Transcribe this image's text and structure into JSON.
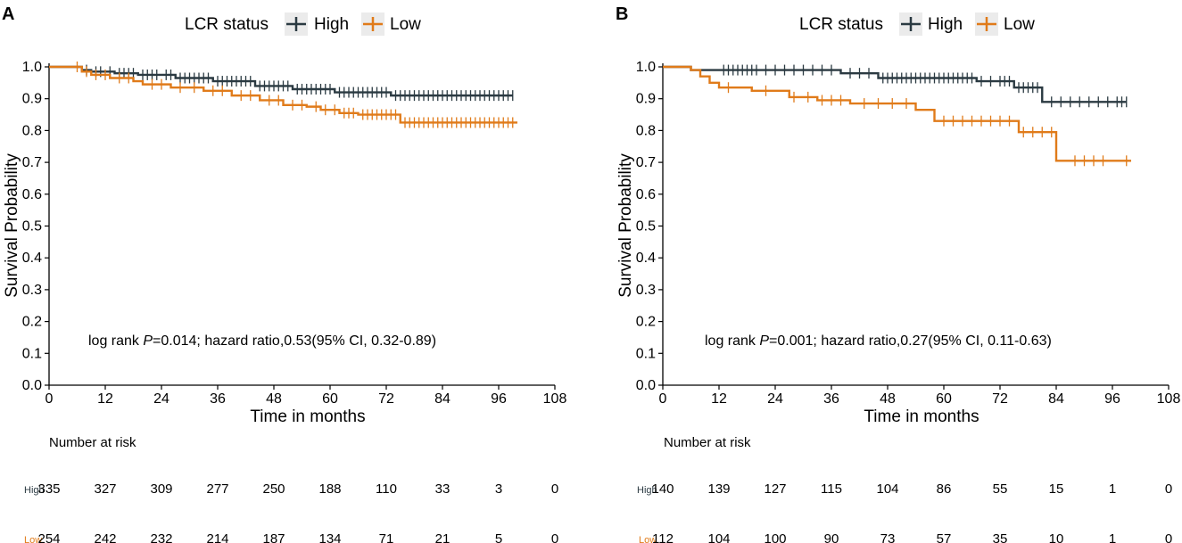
{
  "colors": {
    "high": "#2b3a42",
    "low": "#e07b1a",
    "axis": "#000000"
  },
  "chart_data": [
    {
      "type": "line",
      "panel_label": "A",
      "title": "",
      "legend_title": "LCR status",
      "legend_position": "top",
      "xlabel": "Time in months",
      "ylabel": "Survival Probability",
      "xlim": [
        0,
        108
      ],
      "ylim": [
        0,
        1
      ],
      "x_ticks": [
        "0",
        "12",
        "24",
        "36",
        "48",
        "60",
        "72",
        "84",
        "96",
        "108"
      ],
      "y_ticks": [
        "0.0",
        "0.1",
        "0.2",
        "0.3",
        "0.4",
        "0.5",
        "0.6",
        "0.7",
        "0.8",
        "0.9",
        "1.0"
      ],
      "annotation": {
        "prefix": "log rank ",
        "p_symbol": "P",
        "rest": "=0.014; hazard ratio,0.53(95% CI, 0.32-0.89)"
      },
      "series": [
        {
          "name": "High",
          "x": [
            0,
            5,
            7,
            9,
            14,
            19,
            27,
            35,
            44,
            52,
            61,
            73,
            99
          ],
          "y": [
            1.0,
            1.0,
            0.99,
            0.985,
            0.98,
            0.975,
            0.965,
            0.955,
            0.94,
            0.93,
            0.92,
            0.91,
            0.91
          ],
          "censor_x": [
            8,
            10,
            11,
            13,
            15,
            16,
            17,
            18,
            20,
            21,
            22,
            23,
            25,
            26,
            28,
            29,
            30,
            31,
            32,
            33,
            34,
            36,
            37,
            38,
            39,
            40,
            41,
            42,
            43,
            45,
            46,
            47,
            48,
            49,
            50,
            51,
            53,
            54,
            55,
            56,
            57,
            58,
            59,
            60,
            62,
            63,
            64,
            65,
            66,
            67,
            68,
            69,
            70,
            71,
            72,
            74,
            75,
            76,
            77,
            78,
            79,
            80,
            81,
            82,
            83,
            84,
            85,
            86,
            87,
            88,
            89,
            90,
            91,
            92,
            93,
            94,
            95,
            96,
            97,
            98,
            99
          ]
        },
        {
          "name": "Low",
          "x": [
            0,
            5,
            7,
            9,
            13,
            18,
            20,
            26,
            33,
            39,
            45,
            50,
            55,
            58,
            62,
            66,
            75,
            100
          ],
          "y": [
            1.0,
            1.0,
            0.985,
            0.975,
            0.965,
            0.955,
            0.945,
            0.935,
            0.925,
            0.91,
            0.895,
            0.88,
            0.875,
            0.865,
            0.855,
            0.85,
            0.825,
            0.825
          ],
          "censor_x": [
            6,
            8,
            10,
            12,
            15,
            17,
            22,
            24,
            28,
            31,
            35,
            37,
            41,
            43,
            47,
            49,
            52,
            54,
            57,
            59,
            61,
            63,
            64,
            65,
            67,
            68,
            69,
            70,
            71,
            72,
            73,
            74,
            76,
            77,
            78,
            79,
            80,
            81,
            82,
            83,
            84,
            85,
            86,
            87,
            88,
            89,
            90,
            91,
            92,
            93,
            94,
            95,
            96,
            97,
            98,
            99
          ]
        }
      ],
      "risk_table": {
        "title": "Number at risk",
        "times": [
          0,
          12,
          24,
          36,
          48,
          60,
          72,
          84,
          96,
          108
        ],
        "rows": [
          {
            "name": "High",
            "values": [
              "335",
              "327",
              "309",
              "277",
              "250",
              "188",
              "110",
              "33",
              "3",
              "0"
            ]
          },
          {
            "name": "Low",
            "values": [
              "254",
              "242",
              "232",
              "214",
              "187",
              "134",
              "71",
              "21",
              "5",
              "0"
            ]
          }
        ]
      }
    },
    {
      "type": "line",
      "panel_label": "B",
      "title": "",
      "legend_title": "LCR status",
      "legend_position": "top",
      "xlabel": "Time in months",
      "ylabel": "Survival Probability",
      "xlim": [
        0,
        108
      ],
      "ylim": [
        0,
        1
      ],
      "x_ticks": [
        "0",
        "12",
        "24",
        "36",
        "48",
        "60",
        "72",
        "84",
        "96",
        "108"
      ],
      "y_ticks": [
        "0.0",
        "0.1",
        "0.2",
        "0.3",
        "0.4",
        "0.5",
        "0.6",
        "0.7",
        "0.8",
        "0.9",
        "1.0"
      ],
      "annotation": {
        "prefix": "log rank ",
        "p_symbol": "P",
        "rest": "=0.001; hazard ratio,0.27(95% CI, 0.11-0.63)"
      },
      "series": [
        {
          "name": "High",
          "x": [
            0,
            6,
            38,
            46,
            67,
            75,
            81,
            99
          ],
          "y": [
            1.0,
            0.99,
            0.98,
            0.965,
            0.955,
            0.935,
            0.89,
            0.89
          ],
          "censor_x": [
            13,
            14,
            15,
            16,
            17,
            18,
            19,
            20,
            22,
            24,
            26,
            28,
            30,
            32,
            34,
            36,
            40,
            42,
            44,
            47,
            48,
            49,
            50,
            51,
            52,
            53,
            54,
            55,
            56,
            57,
            58,
            59,
            60,
            61,
            62,
            63,
            64,
            65,
            66,
            68,
            70,
            72,
            73,
            74,
            76,
            77,
            78,
            79,
            80,
            83,
            85,
            87,
            89,
            91,
            93,
            95,
            97,
            98,
            99
          ]
        },
        {
          "name": "Low",
          "x": [
            0,
            6,
            8,
            10,
            12,
            19,
            27,
            33,
            40,
            54,
            58,
            76,
            84,
            100
          ],
          "y": [
            1.0,
            0.99,
            0.97,
            0.95,
            0.935,
            0.925,
            0.905,
            0.895,
            0.885,
            0.865,
            0.83,
            0.795,
            0.705,
            0.705
          ],
          "censor_x": [
            14,
            22,
            28,
            31,
            34,
            36,
            38,
            43,
            46,
            49,
            52,
            60,
            62,
            64,
            66,
            68,
            70,
            72,
            74,
            77,
            79,
            81,
            83,
            88,
            90,
            92,
            94,
            99
          ]
        }
      ],
      "risk_table": {
        "title": "Number at risk",
        "times": [
          0,
          12,
          24,
          36,
          48,
          60,
          72,
          84,
          96,
          108
        ],
        "rows": [
          {
            "name": "High",
            "values": [
              "140",
              "139",
              "127",
              "115",
              "104",
              "86",
              "55",
              "15",
              "1",
              "0"
            ]
          },
          {
            "name": "Low",
            "values": [
              "112",
              "104",
              "100",
              "90",
              "73",
              "57",
              "35",
              "10",
              "1",
              "0"
            ]
          }
        ]
      }
    }
  ]
}
